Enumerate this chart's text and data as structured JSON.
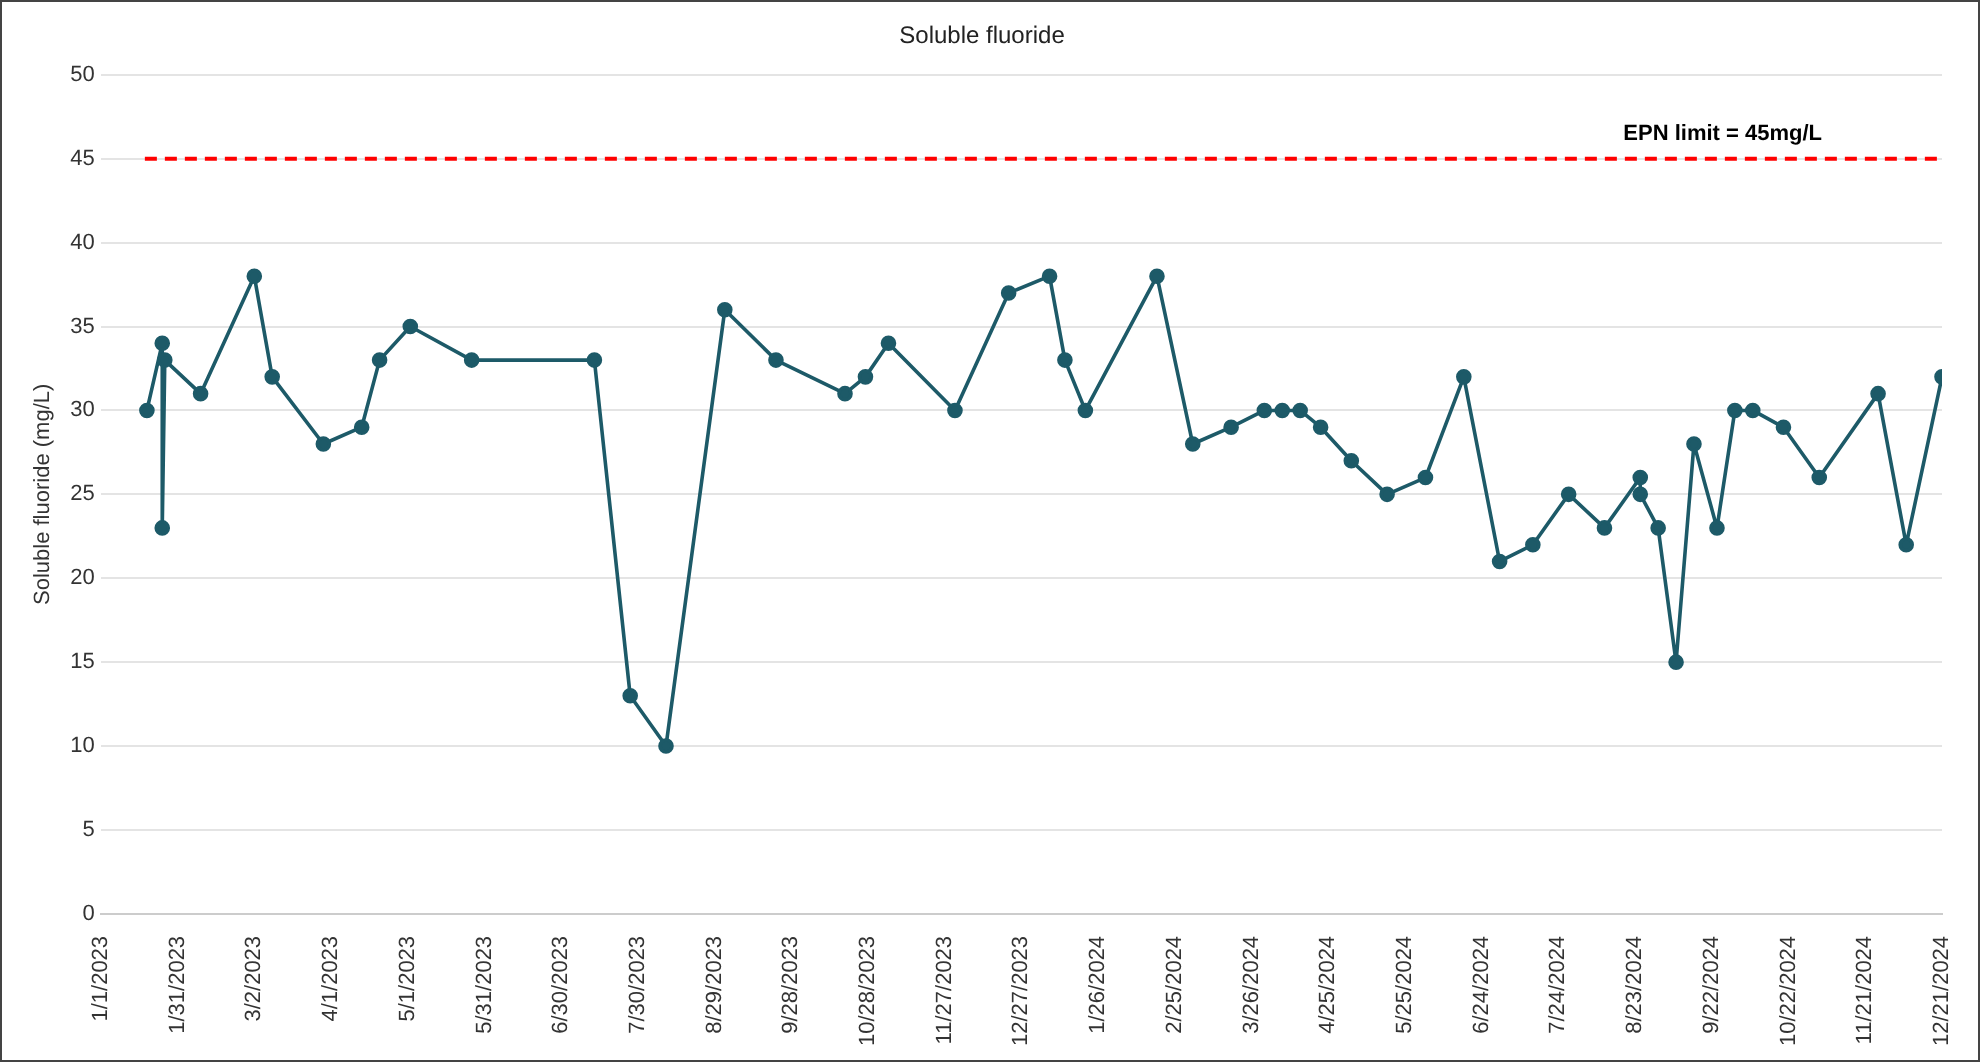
{
  "chart_data": {
    "type": "line",
    "title": "Soluble fluoride",
    "ylabel": "Soluble fluoride (mg/L)",
    "x": [
      "2023-01-19",
      "2023-01-25",
      "2023-01-25",
      "2023-01-26",
      "2023-02-09",
      "2023-03-02",
      "2023-03-09",
      "2023-03-29",
      "2023-04-13",
      "2023-04-20",
      "2023-05-02",
      "2023-05-26",
      "2023-07-13",
      "2023-07-27",
      "2023-08-10",
      "2023-09-02",
      "2023-09-22",
      "2023-10-19",
      "2023-10-27",
      "2023-11-05",
      "2023-12-01",
      "2023-12-22",
      "2024-01-07",
      "2024-01-13",
      "2024-01-21",
      "2024-02-18",
      "2024-03-03",
      "2024-03-18",
      "2024-03-31",
      "2024-04-07",
      "2024-04-14",
      "2024-04-22",
      "2024-05-04",
      "2024-05-18",
      "2024-06-02",
      "2024-06-17",
      "2024-07-01",
      "2024-07-14",
      "2024-07-28",
      "2024-08-11",
      "2024-08-25",
      "2024-08-25",
      "2024-09-01",
      "2024-09-08",
      "2024-09-15",
      "2024-09-24",
      "2024-10-01",
      "2024-10-08",
      "2024-10-20",
      "2024-11-03",
      "2024-11-26",
      "2024-12-07",
      "2024-12-21"
    ],
    "series": [
      {
        "color": "#1d5a68",
        "values": [
          30,
          34,
          23,
          33,
          31,
          38,
          32,
          28,
          29,
          33,
          35,
          33,
          33,
          13,
          10,
          36,
          33,
          31,
          32,
          34,
          30,
          37,
          38,
          33,
          30,
          38,
          28,
          29,
          30,
          30,
          30,
          29,
          27,
          25,
          26,
          32,
          21,
          22,
          25,
          23,
          26,
          25,
          23,
          15,
          28,
          23,
          30,
          30,
          29,
          26,
          31,
          22,
          32
        ]
      }
    ],
    "xlim": [
      "2023-01-01",
      "2024-12-21"
    ],
    "xticks": [
      {
        "value": "2023-01-01",
        "label": "1/1/2023"
      },
      {
        "value": "2023-01-31",
        "label": "1/31/2023"
      },
      {
        "value": "2023-03-02",
        "label": "3/2/2023"
      },
      {
        "value": "2023-04-01",
        "label": "4/1/2023"
      },
      {
        "value": "2023-05-01",
        "label": "5/1/2023"
      },
      {
        "value": "2023-05-31",
        "label": "5/31/2023"
      },
      {
        "value": "2023-06-30",
        "label": "6/30/2023"
      },
      {
        "value": "2023-07-30",
        "label": "7/30/2023"
      },
      {
        "value": "2023-08-29",
        "label": "8/29/2023"
      },
      {
        "value": "2023-09-28",
        "label": "9/28/2023"
      },
      {
        "value": "2023-10-28",
        "label": "10/28/2023"
      },
      {
        "value": "2023-11-27",
        "label": "11/27/2023"
      },
      {
        "value": "2023-12-27",
        "label": "12/27/2023"
      },
      {
        "value": "2024-01-26",
        "label": "1/26/2024"
      },
      {
        "value": "2024-02-25",
        "label": "2/25/2024"
      },
      {
        "value": "2024-03-26",
        "label": "3/26/2024"
      },
      {
        "value": "2024-04-25",
        "label": "4/25/2024"
      },
      {
        "value": "2024-05-25",
        "label": "5/25/2024"
      },
      {
        "value": "2024-06-24",
        "label": "6/24/2024"
      },
      {
        "value": "2024-07-24",
        "label": "7/24/2024"
      },
      {
        "value": "2024-08-23",
        "label": "8/23/2024"
      },
      {
        "value": "2024-09-22",
        "label": "9/22/2024"
      },
      {
        "value": "2024-10-22",
        "label": "10/22/2024"
      },
      {
        "value": "2024-11-21",
        "label": "11/21/2024"
      },
      {
        "value": "2024-12-21",
        "label": "12/21/2024"
      }
    ],
    "ylim": [
      0,
      50
    ],
    "yticks": [
      0,
      5,
      10,
      15,
      20,
      25,
      30,
      35,
      40,
      45,
      50
    ],
    "ref_lines": [
      {
        "axis": "y",
        "value": 45,
        "label": "EPN limit = 45mg/L",
        "color": "#ff0000",
        "line_style": "dashed"
      }
    ],
    "grid": "y",
    "legend": false,
    "marker": "circle",
    "line_style": "solid"
  }
}
